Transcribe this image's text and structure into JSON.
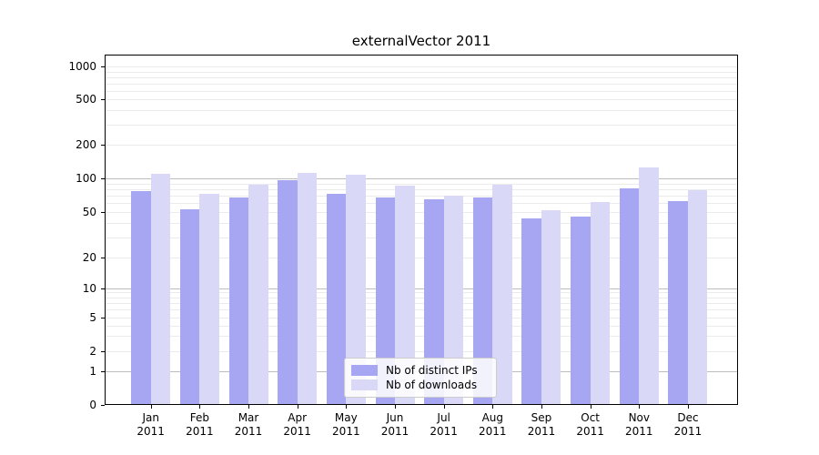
{
  "title": "externalVector 2011",
  "chart_data": {
    "type": "bar",
    "title": "externalVector 2011",
    "year": "2011",
    "months": [
      "Jan",
      "Feb",
      "Mar",
      "Apr",
      "May",
      "Jun",
      "Jul",
      "Aug",
      "Sep",
      "Oct",
      "Nov",
      "Dec"
    ],
    "categories": [
      "Jan 2011",
      "Feb 2011",
      "Mar 2011",
      "Apr 2011",
      "May 2011",
      "Jun 2011",
      "Jul 2011",
      "Aug 2011",
      "Sep 2011",
      "Oct 2011",
      "Nov 2011",
      "Dec 2011"
    ],
    "series": [
      {
        "name": "Nb of distinct IPs",
        "color": "#a6a6f2",
        "values": [
          76,
          52,
          67,
          94,
          71,
          66,
          64,
          67,
          43,
          45,
          80,
          62
        ]
      },
      {
        "name": "Nb of downloads",
        "color": "#d9d9f7",
        "values": [
          107,
          72,
          86,
          110,
          106,
          84,
          69,
          86,
          51,
          61,
          122,
          77
        ]
      }
    ],
    "yticks": [
      0,
      1,
      2,
      5,
      10,
      20,
      50,
      100,
      200,
      500,
      1000
    ],
    "scale": "symlog",
    "ylim": [
      0,
      1300
    ],
    "grid": true,
    "legend_position": "lower-center",
    "colors": {
      "major_grid": "#bdbdbd",
      "minor_grid": "#ebebeb",
      "axis": "#000000"
    }
  }
}
